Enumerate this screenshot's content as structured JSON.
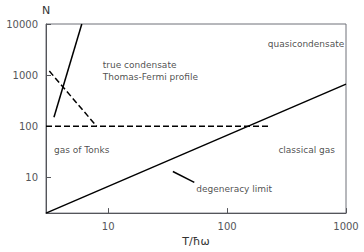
{
  "chart_data": {
    "type": "line",
    "log": true,
    "grid": false,
    "xlabel": "T/ħω",
    "ylabel": "N",
    "xlim": [
      3,
      1000
    ],
    "ylim": [
      2,
      10000
    ],
    "xticks": [
      10,
      100,
      1000
    ],
    "yticks": [
      10,
      100,
      1000,
      10000
    ],
    "series": [
      {
        "x": [
          3,
          1000
        ],
        "values": [
          2,
          667
        ],
        "color": "#000000",
        "line_style": "solid"
      },
      {
        "x": [
          3.5,
          6.0
        ],
        "values": [
          150,
          10000
        ],
        "color": "#000000",
        "line_style": "solid"
      },
      {
        "x": [
          3.2,
          8.0
        ],
        "values": [
          1200,
          100
        ],
        "color": "#000000",
        "line_style": "dashed"
      },
      {
        "x": [
          3,
          230
        ],
        "values": [
          100,
          100
        ],
        "color": "#000000",
        "line_style": "dashed"
      },
      {
        "x": [
          53,
          35
        ],
        "values": [
          8,
          13
        ],
        "color": "#000000",
        "line_style": "solid"
      }
    ],
    "annotations": [
      {
        "text": "quasicondensate",
        "x": 220,
        "y": 4000
      },
      {
        "text": "true condensate",
        "x": 9,
        "y": 1600
      },
      {
        "text": "Thomas-Fermi profile",
        "x": 9,
        "y": 900
      },
      {
        "text": "gas of Tonks",
        "x": 3.5,
        "y": 35
      },
      {
        "text": "classical gas",
        "x": 270,
        "y": 35
      },
      {
        "text": "degeneracy limit",
        "x": 55,
        "y": 6
      }
    ]
  }
}
